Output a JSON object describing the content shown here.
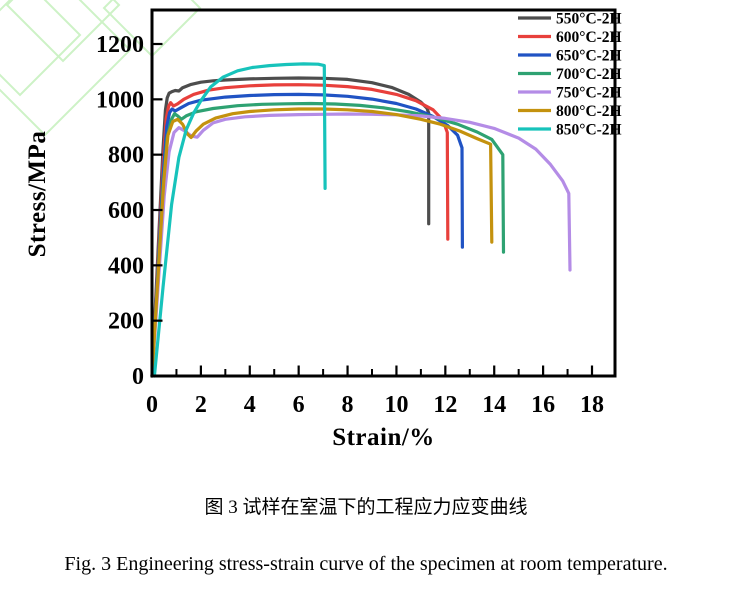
{
  "figure": {
    "caption_zh": "图 3  试样在室温下的工程应力应变曲线",
    "caption_en": "Fig. 3 Engineering stress-strain curve of the specimen at room temperature."
  },
  "watermark": {
    "color": "#cdf2c6"
  },
  "chart_data": {
    "type": "line",
    "title": "",
    "xlabel": "Strain/%",
    "ylabel": "Stress/MPa",
    "xlim": [
      0,
      18.9
    ],
    "ylim": [
      0,
      1323
    ],
    "x_ticks": [
      0,
      2,
      4,
      6,
      8,
      10,
      12,
      14,
      16,
      18
    ],
    "x_minor_ticks": [
      1,
      3,
      5,
      7,
      9,
      11,
      13,
      15,
      17
    ],
    "y_ticks": [
      0,
      200,
      400,
      600,
      800,
      1000,
      1200
    ],
    "grid": false,
    "legend_position": "top-right",
    "frame_color": "#000000",
    "series": [
      {
        "name": "550°C-2H",
        "color": "#4d4d4d",
        "points": [
          [
            0,
            0
          ],
          [
            0.45,
            820
          ],
          [
            0.55,
            960
          ],
          [
            0.62,
            1005
          ],
          [
            0.7,
            1022
          ],
          [
            0.82,
            1028
          ],
          [
            0.95,
            1032
          ],
          [
            1.1,
            1030
          ],
          [
            1.25,
            1042
          ],
          [
            1.6,
            1054
          ],
          [
            2,
            1062
          ],
          [
            2.5,
            1067
          ],
          [
            3,
            1070
          ],
          [
            4,
            1074
          ],
          [
            5,
            1076
          ],
          [
            6,
            1077
          ],
          [
            7,
            1076
          ],
          [
            8,
            1072
          ],
          [
            9,
            1060
          ],
          [
            9.8,
            1043
          ],
          [
            10.5,
            1018
          ],
          [
            11,
            990
          ],
          [
            11.25,
            968
          ],
          [
            11.32,
            950
          ],
          [
            11.32,
            550
          ]
        ]
      },
      {
        "name": "600°C-2H",
        "color": "#e8403c",
        "points": [
          [
            0,
            0
          ],
          [
            0.45,
            760
          ],
          [
            0.58,
            930
          ],
          [
            0.68,
            975
          ],
          [
            0.76,
            988
          ],
          [
            0.88,
            976
          ],
          [
            1.05,
            984
          ],
          [
            1.3,
            1000
          ],
          [
            1.7,
            1018
          ],
          [
            2.3,
            1033
          ],
          [
            3,
            1042
          ],
          [
            4,
            1049
          ],
          [
            5,
            1052
          ],
          [
            6,
            1053
          ],
          [
            7,
            1051
          ],
          [
            8,
            1046
          ],
          [
            9,
            1036
          ],
          [
            10,
            1018
          ],
          [
            10.8,
            995
          ],
          [
            11.5,
            962
          ],
          [
            11.9,
            925
          ],
          [
            12.08,
            880
          ],
          [
            12.1,
            495
          ]
        ]
      },
      {
        "name": "650°C-2H",
        "color": "#2053c4",
        "points": [
          [
            0,
            0
          ],
          [
            0.45,
            720
          ],
          [
            0.6,
            900
          ],
          [
            0.72,
            952
          ],
          [
            0.82,
            965
          ],
          [
            0.95,
            958
          ],
          [
            1.15,
            968
          ],
          [
            1.5,
            985
          ],
          [
            2,
            997
          ],
          [
            3,
            1008
          ],
          [
            4,
            1014
          ],
          [
            5,
            1017
          ],
          [
            6,
            1018
          ],
          [
            7,
            1016
          ],
          [
            8,
            1011
          ],
          [
            9,
            1001
          ],
          [
            10,
            985
          ],
          [
            10.8,
            965
          ],
          [
            11.5,
            938
          ],
          [
            12.1,
            905
          ],
          [
            12.5,
            870
          ],
          [
            12.68,
            825
          ],
          [
            12.7,
            466
          ]
        ]
      },
      {
        "name": "700°C-2H",
        "color": "#2ea272",
        "points": [
          [
            0,
            0
          ],
          [
            0.45,
            680
          ],
          [
            0.62,
            860
          ],
          [
            0.78,
            925
          ],
          [
            0.92,
            948
          ],
          [
            1.05,
            940
          ],
          [
            1.2,
            928
          ],
          [
            1.4,
            940
          ],
          [
            1.8,
            955
          ],
          [
            2.5,
            967
          ],
          [
            3.5,
            977
          ],
          [
            4.5,
            982
          ],
          [
            5.5,
            984
          ],
          [
            6.5,
            985
          ],
          [
            7.5,
            983
          ],
          [
            8.5,
            978
          ],
          [
            9.5,
            969
          ],
          [
            10.5,
            955
          ],
          [
            11.5,
            936
          ],
          [
            12.5,
            910
          ],
          [
            13.3,
            882
          ],
          [
            13.9,
            855
          ],
          [
            14.35,
            800
          ],
          [
            14.38,
            448
          ]
        ]
      },
      {
        "name": "750°C-2H",
        "color": "#b48ce6",
        "points": [
          [
            0,
            0
          ],
          [
            0.5,
            650
          ],
          [
            0.7,
            810
          ],
          [
            0.9,
            880
          ],
          [
            1.1,
            898
          ],
          [
            1.35,
            885
          ],
          [
            1.6,
            868
          ],
          [
            1.85,
            863
          ],
          [
            2.1,
            888
          ],
          [
            2.5,
            915
          ],
          [
            3,
            928
          ],
          [
            3.8,
            937
          ],
          [
            4.8,
            942
          ],
          [
            6,
            945
          ],
          [
            7,
            946
          ],
          [
            8,
            947
          ],
          [
            9,
            946
          ],
          [
            10,
            944
          ],
          [
            11,
            940
          ],
          [
            12,
            931
          ],
          [
            13,
            917
          ],
          [
            14,
            895
          ],
          [
            15,
            860
          ],
          [
            15.7,
            820
          ],
          [
            16.3,
            765
          ],
          [
            16.8,
            705
          ],
          [
            17.05,
            660
          ],
          [
            17.1,
            383
          ]
        ]
      },
      {
        "name": "800°C-2H",
        "color": "#c4920e",
        "points": [
          [
            0,
            0
          ],
          [
            0.48,
            700
          ],
          [
            0.65,
            870
          ],
          [
            0.85,
            920
          ],
          [
            1.05,
            928
          ],
          [
            1.25,
            910
          ],
          [
            1.45,
            875
          ],
          [
            1.6,
            862
          ],
          [
            1.8,
            885
          ],
          [
            2.1,
            910
          ],
          [
            2.6,
            932
          ],
          [
            3.3,
            948
          ],
          [
            4,
            956
          ],
          [
            5,
            962
          ],
          [
            6,
            965
          ],
          [
            7,
            965
          ],
          [
            8,
            962
          ],
          [
            9,
            956
          ],
          [
            10,
            945
          ],
          [
            11,
            928
          ],
          [
            11.8,
            910
          ],
          [
            12.6,
            885
          ],
          [
            13.3,
            858
          ],
          [
            13.85,
            838
          ],
          [
            13.9,
            484
          ]
        ]
      },
      {
        "name": "850°C-2H",
        "color": "#17c3bb",
        "points": [
          [
            0.1,
            0
          ],
          [
            0.45,
            320
          ],
          [
            0.8,
            620
          ],
          [
            1.1,
            790
          ],
          [
            1.4,
            890
          ],
          [
            1.7,
            950
          ],
          [
            2,
            995
          ],
          [
            2.4,
            1045
          ],
          [
            2.9,
            1080
          ],
          [
            3.5,
            1103
          ],
          [
            4.1,
            1115
          ],
          [
            4.8,
            1122
          ],
          [
            5.5,
            1126
          ],
          [
            6.2,
            1128
          ],
          [
            6.8,
            1127
          ],
          [
            7.05,
            1122
          ],
          [
            7.08,
            678
          ]
        ]
      }
    ]
  }
}
